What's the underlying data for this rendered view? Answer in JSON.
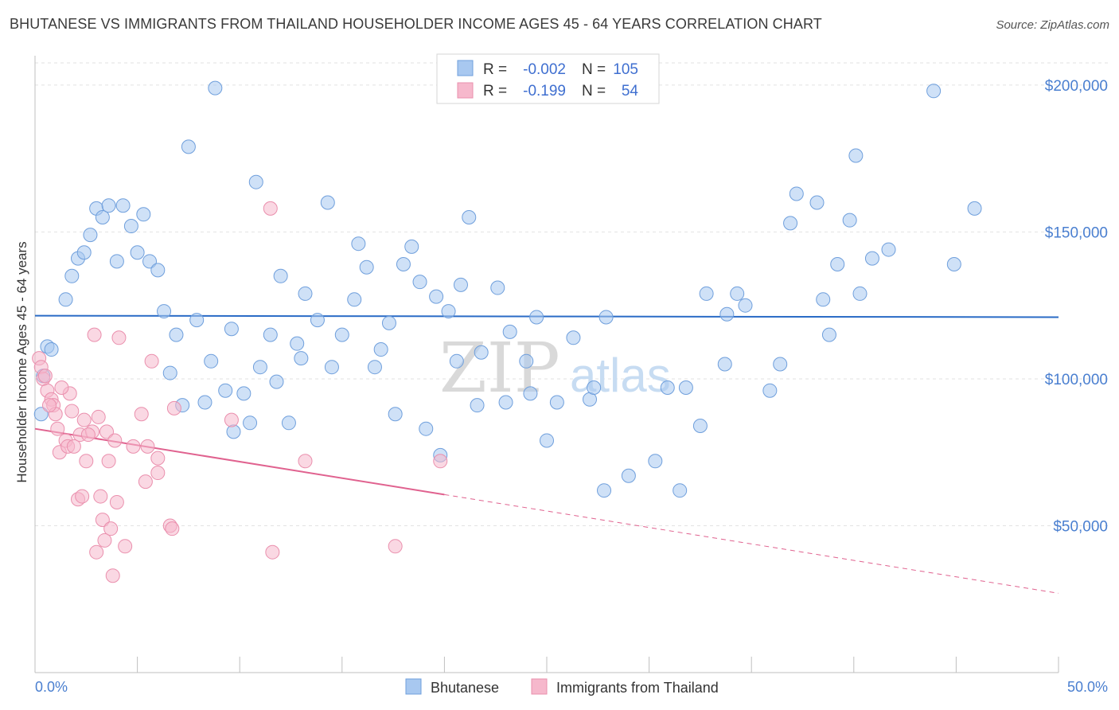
{
  "title": "BHUTANESE VS IMMIGRANTS FROM THAILAND HOUSEHOLDER INCOME AGES 45 - 64 YEARS CORRELATION CHART",
  "source": "Source: ZipAtlas.com",
  "watermark": {
    "zip": "ZIP",
    "atlas": "atlas"
  },
  "legend": {
    "rows": [
      {
        "r_label": "R =",
        "r_value": "-0.002",
        "n_label": "N =",
        "n_value": "105",
        "color": "#a8c8f0"
      },
      {
        "r_label": "R =",
        "r_value": "-0.199",
        "n_label": "N =",
        "n_value": "54",
        "color": "#f6b8cc"
      }
    ]
  },
  "bottom_legend": {
    "series1": "Bhutanese",
    "series2": "Immigrants from Thailand"
  },
  "chart_data": {
    "type": "scatter",
    "title": "BHUTANESE VS IMMIGRANTS FROM THAILAND HOUSEHOLDER INCOME AGES 45 - 64 YEARS CORRELATION CHART",
    "xlabel": "",
    "ylabel": "Householder Income Ages 45 - 64 years",
    "xlim": [
      0,
      50
    ],
    "ylim": [
      0,
      210000
    ],
    "x_tick_labels": [
      "0.0%",
      "50.0%"
    ],
    "y_ticks": [
      50000,
      100000,
      150000,
      200000
    ],
    "y_tick_labels": [
      "$50,000",
      "$100,000",
      "$150,000",
      "$200,000"
    ],
    "grid": true,
    "series": [
      {
        "name": "Bhutanese",
        "color": "#a8c8f0",
        "stroke": "#6f9fdc",
        "trend": {
          "x0": 0,
          "y0": 121500,
          "x1": 50,
          "y1": 121000,
          "solid_to": 50,
          "color": "#2a6bc6"
        },
        "points": [
          [
            0.3,
            88000
          ],
          [
            0.4,
            101000
          ],
          [
            0.6,
            111000
          ],
          [
            0.8,
            110000
          ],
          [
            1.5,
            127000
          ],
          [
            1.8,
            135000
          ],
          [
            2.1,
            141000
          ],
          [
            2.4,
            143000
          ],
          [
            2.7,
            149000
          ],
          [
            3.0,
            158000
          ],
          [
            3.3,
            155000
          ],
          [
            3.6,
            159000
          ],
          [
            4.0,
            140000
          ],
          [
            4.3,
            159000
          ],
          [
            4.7,
            152000
          ],
          [
            5.0,
            143000
          ],
          [
            5.3,
            156000
          ],
          [
            5.6,
            140000
          ],
          [
            6.0,
            137000
          ],
          [
            6.3,
            123000
          ],
          [
            6.6,
            102000
          ],
          [
            6.9,
            115000
          ],
          [
            7.2,
            91000
          ],
          [
            7.5,
            179000
          ],
          [
            7.9,
            120000
          ],
          [
            8.3,
            92000
          ],
          [
            8.6,
            106000
          ],
          [
            8.8,
            199000
          ],
          [
            9.3,
            96000
          ],
          [
            9.6,
            117000
          ],
          [
            9.7,
            82000
          ],
          [
            10.2,
            95000
          ],
          [
            10.5,
            85000
          ],
          [
            10.8,
            167000
          ],
          [
            11.0,
            104000
          ],
          [
            11.5,
            115000
          ],
          [
            11.8,
            99000
          ],
          [
            12.0,
            135000
          ],
          [
            12.4,
            85000
          ],
          [
            12.8,
            112000
          ],
          [
            13.0,
            107000
          ],
          [
            13.2,
            129000
          ],
          [
            13.8,
            120000
          ],
          [
            14.3,
            160000
          ],
          [
            14.5,
            104000
          ],
          [
            15.0,
            115000
          ],
          [
            15.6,
            127000
          ],
          [
            15.8,
            146000
          ],
          [
            16.2,
            138000
          ],
          [
            16.6,
            104000
          ],
          [
            16.9,
            110000
          ],
          [
            17.3,
            119000
          ],
          [
            17.6,
            88000
          ],
          [
            18.0,
            139000
          ],
          [
            18.4,
            145000
          ],
          [
            18.8,
            133000
          ],
          [
            19.1,
            83000
          ],
          [
            19.6,
            128000
          ],
          [
            19.8,
            74000
          ],
          [
            20.2,
            123000
          ],
          [
            20.6,
            106000
          ],
          [
            20.8,
            132000
          ],
          [
            21.2,
            155000
          ],
          [
            21.6,
            91000
          ],
          [
            21.8,
            109000
          ],
          [
            22.6,
            131000
          ],
          [
            23.0,
            92000
          ],
          [
            23.2,
            116000
          ],
          [
            24.0,
            106000
          ],
          [
            24.2,
            95000
          ],
          [
            24.5,
            121000
          ],
          [
            25.0,
            79000
          ],
          [
            25.5,
            92000
          ],
          [
            26.3,
            114000
          ],
          [
            27.1,
            93000
          ],
          [
            27.3,
            97000
          ],
          [
            27.9,
            121000
          ],
          [
            27.8,
            62000
          ],
          [
            29.0,
            67000
          ],
          [
            30.3,
            72000
          ],
          [
            30.9,
            97000
          ],
          [
            31.5,
            62000
          ],
          [
            31.8,
            97000
          ],
          [
            32.5,
            84000
          ],
          [
            32.8,
            129000
          ],
          [
            33.7,
            105000
          ],
          [
            33.8,
            122000
          ],
          [
            34.3,
            129000
          ],
          [
            34.7,
            125000
          ],
          [
            35.9,
            96000
          ],
          [
            36.4,
            105000
          ],
          [
            36.9,
            153000
          ],
          [
            37.2,
            163000
          ],
          [
            38.2,
            160000
          ],
          [
            38.5,
            127000
          ],
          [
            38.8,
            115000
          ],
          [
            39.2,
            139000
          ],
          [
            39.8,
            154000
          ],
          [
            40.1,
            176000
          ],
          [
            40.3,
            129000
          ],
          [
            40.9,
            141000
          ],
          [
            41.7,
            144000
          ],
          [
            43.9,
            198000
          ],
          [
            44.9,
            139000
          ],
          [
            45.9,
            158000
          ]
        ]
      },
      {
        "name": "Immigrants from Thailand",
        "color": "#f6b8cc",
        "stroke": "#ea8fad",
        "trend": {
          "x0": 0,
          "y0": 83000,
          "x1": 50,
          "y1": 27000,
          "solid_to": 20.0,
          "color": "#e0628f"
        },
        "points": [
          [
            0.2,
            107000
          ],
          [
            0.3,
            104000
          ],
          [
            0.4,
            100000
          ],
          [
            0.5,
            101000
          ],
          [
            0.6,
            96000
          ],
          [
            0.8,
            93000
          ],
          [
            0.9,
            91000
          ],
          [
            1.0,
            88000
          ],
          [
            1.1,
            83000
          ],
          [
            1.2,
            75000
          ],
          [
            1.5,
            79000
          ],
          [
            1.6,
            77000
          ],
          [
            1.7,
            95000
          ],
          [
            1.8,
            89000
          ],
          [
            1.9,
            77000
          ],
          [
            2.1,
            59000
          ],
          [
            2.2,
            81000
          ],
          [
            2.3,
            60000
          ],
          [
            2.4,
            86000
          ],
          [
            2.5,
            72000
          ],
          [
            2.8,
            82000
          ],
          [
            2.9,
            115000
          ],
          [
            3.0,
            41000
          ],
          [
            3.1,
            87000
          ],
          [
            3.2,
            60000
          ],
          [
            3.3,
            52000
          ],
          [
            3.4,
            45000
          ],
          [
            3.5,
            82000
          ],
          [
            3.6,
            72000
          ],
          [
            3.7,
            49000
          ],
          [
            3.8,
            33000
          ],
          [
            3.9,
            79000
          ],
          [
            4.0,
            58000
          ],
          [
            4.1,
            114000
          ],
          [
            4.4,
            43000
          ],
          [
            4.8,
            77000
          ],
          [
            5.2,
            88000
          ],
          [
            5.4,
            65000
          ],
          [
            5.5,
            77000
          ],
          [
            5.7,
            106000
          ],
          [
            6.0,
            68000
          ],
          [
            6.0,
            73000
          ],
          [
            6.6,
            50000
          ],
          [
            6.7,
            49000
          ],
          [
            6.8,
            90000
          ],
          [
            9.6,
            86000
          ],
          [
            11.5,
            158000
          ],
          [
            11.6,
            41000
          ],
          [
            13.2,
            72000
          ],
          [
            17.6,
            43000
          ],
          [
            19.8,
            72000
          ],
          [
            0.7,
            91000
          ],
          [
            2.6,
            81000
          ],
          [
            1.3,
            97000
          ]
        ]
      }
    ]
  }
}
